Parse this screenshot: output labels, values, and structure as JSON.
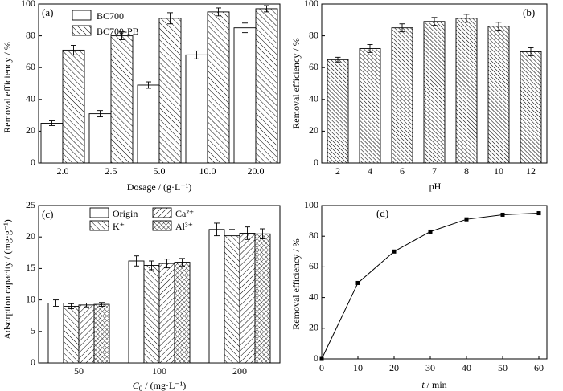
{
  "chart_data": [
    {
      "id": "a",
      "panel_label": "(a)",
      "type": "bar",
      "categories": [
        "2.0",
        "2.5",
        "5.0",
        "10.0",
        "20.0"
      ],
      "series": [
        {
          "name": "BC700",
          "pattern": "none",
          "values": [
            25,
            31,
            49,
            68,
            85
          ],
          "errors": [
            1.5,
            2,
            2,
            2.5,
            3
          ]
        },
        {
          "name": "BC700-PB",
          "pattern": "diag",
          "values": [
            71,
            80,
            91,
            95,
            97
          ],
          "errors": [
            3,
            2.5,
            3.5,
            2.5,
            2
          ]
        }
      ],
      "xlabel": "Dosage / (g·L⁻¹)",
      "ylabel": "Removal efficiency / %",
      "ylim": [
        0,
        100
      ],
      "yticks": [
        0,
        20,
        40,
        60,
        80,
        100
      ],
      "legend": "top-left"
    },
    {
      "id": "b",
      "panel_label": "(b)",
      "type": "bar",
      "categories": [
        "2",
        "4",
        "6",
        "7",
        "8",
        "10",
        "12"
      ],
      "series": [
        {
          "name": "",
          "pattern": "diag-dense",
          "values": [
            65,
            72,
            85,
            89,
            91,
            86,
            70
          ],
          "errors": [
            1.5,
            2.5,
            2.5,
            2.5,
            2.5,
            2.5,
            2.5
          ]
        }
      ],
      "xlabel": "pH",
      "ylabel": "Removal efficiency / %",
      "ylim": [
        0,
        100
      ],
      "yticks": [
        0,
        20,
        40,
        60,
        80,
        100
      ]
    },
    {
      "id": "c",
      "panel_label": "(c)",
      "type": "bar",
      "categories": [
        "50",
        "100",
        "200"
      ],
      "series": [
        {
          "name": "Origin",
          "pattern": "none",
          "values": [
            9.5,
            16.2,
            21.2
          ],
          "errors": [
            0.5,
            0.8,
            1.0
          ]
        },
        {
          "name": "K⁺",
          "pattern": "diag",
          "values": [
            9.0,
            15.5,
            20.2
          ],
          "errors": [
            0.4,
            0.7,
            1.0
          ]
        },
        {
          "name": "Ca²⁺",
          "pattern": "anti",
          "values": [
            9.2,
            15.8,
            20.6
          ],
          "errors": [
            0.3,
            0.7,
            1.0
          ]
        },
        {
          "name": "Al³⁺",
          "pattern": "cross",
          "values": [
            9.3,
            16.0,
            20.5
          ],
          "errors": [
            0.3,
            0.6,
            0.8
          ]
        }
      ],
      "xlabel_main": "C",
      "xlabel_sub": "0",
      "xlabel_unit": " / (mg·L⁻¹)",
      "ylabel": "Adsorption capacity / (mg·g⁻¹)",
      "ylim": [
        0,
        25
      ],
      "yticks": [
        0,
        5,
        10,
        15,
        20,
        25
      ],
      "legend": "top"
    },
    {
      "id": "d",
      "panel_label": "(d)",
      "type": "line",
      "x": [
        0,
        10,
        20,
        30,
        40,
        50,
        60
      ],
      "y": [
        0,
        49.5,
        70,
        83,
        91,
        94,
        95
      ],
      "xlabel_main": "t",
      "xlabel_unit": " / min",
      "ylabel": "Removal efficiency / %",
      "xlim": [
        0,
        60
      ],
      "ylim": [
        0,
        100
      ],
      "xticks": [
        0,
        10,
        20,
        30,
        40,
        50,
        60
      ],
      "yticks": [
        0,
        20,
        40,
        60,
        80,
        100
      ]
    }
  ]
}
